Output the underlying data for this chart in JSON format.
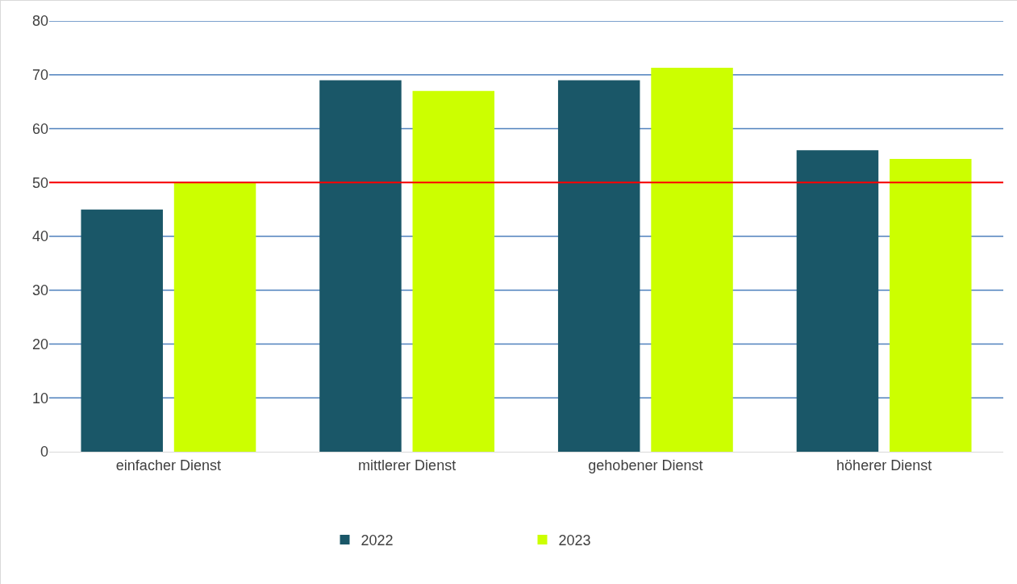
{
  "chart_data": {
    "type": "bar",
    "categories": [
      "einfacher Dienst",
      "mittlerer Dienst",
      "gehobener Dienst",
      "höherer Dienst"
    ],
    "series": [
      {
        "name": "2022",
        "color": "#1a5768",
        "values": [
          45,
          69,
          69,
          56
        ]
      },
      {
        "name": "2023",
        "color": "#ccff00",
        "values": [
          50,
          67,
          71.3,
          54.4
        ]
      }
    ],
    "ylim": [
      0,
      80
    ],
    "yticks": [
      0,
      10,
      20,
      30,
      40,
      50,
      60,
      70,
      80
    ],
    "grid": "y",
    "legend": "bottom",
    "ref_lines": [
      {
        "axis": "y",
        "value": 50,
        "color": "#ff0000"
      }
    ]
  }
}
